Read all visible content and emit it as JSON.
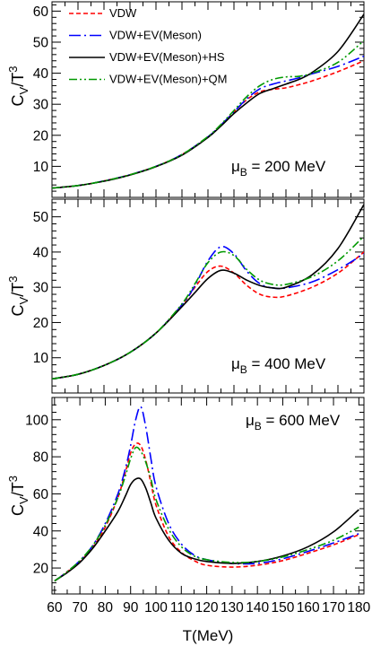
{
  "chart_data": [
    {
      "type": "line",
      "ylabel": "C_V/T^3",
      "annotation": {
        "symbol": "μ",
        "subscript": "B",
        "rest": " = 200 MeV"
      },
      "xlim": [
        60,
        180
      ],
      "ylim": [
        0,
        63
      ],
      "yticks": [
        10,
        20,
        30,
        40,
        50,
        60
      ],
      "xticks": [
        60,
        80,
        100,
        120,
        140,
        160,
        180
      ],
      "legend": {
        "placement": "top-left",
        "entries": [
          "VDW",
          "VDW+EV(Meson)",
          "VDW+EV(Meson)+HS",
          "VDW+EV(Meson)+QM"
        ]
      },
      "series": [
        {
          "name": "VDW",
          "color": "#ff0000",
          "dash": "dashed",
          "x": [
            60,
            70,
            80,
            90,
            100,
            110,
            120,
            125,
            130,
            135,
            140,
            145,
            150,
            155,
            160,
            170,
            180
          ],
          "y": [
            3.0,
            3.8,
            5.3,
            7.3,
            10.0,
            13.8,
            19.5,
            23.3,
            27.5,
            31.5,
            34.0,
            34.8,
            35.3,
            36.3,
            37.5,
            40.5,
            44.0
          ]
        },
        {
          "name": "VDW+EV(Meson)",
          "color": "#0000ff",
          "dash": "dashdot",
          "x": [
            60,
            70,
            80,
            90,
            100,
            110,
            120,
            125,
            130,
            135,
            140,
            145,
            150,
            155,
            160,
            170,
            180
          ],
          "y": [
            3.0,
            3.8,
            5.3,
            7.3,
            10.0,
            13.8,
            19.5,
            23.3,
            27.5,
            31.8,
            35.0,
            36.5,
            37.5,
            38.5,
            39.8,
            42.2,
            45.5
          ]
        },
        {
          "name": "VDW+EV(Meson)+HS",
          "color": "#000000",
          "dash": "solid",
          "x": [
            60,
            70,
            80,
            90,
            100,
            110,
            120,
            125,
            130,
            135,
            140,
            145,
            150,
            155,
            160,
            170,
            180
          ],
          "y": [
            3.0,
            3.8,
            5.2,
            7.2,
            9.9,
            13.6,
            19.3,
            23.0,
            27.0,
            30.5,
            33.5,
            35.0,
            36.5,
            38.0,
            40.2,
            47.0,
            59.0
          ]
        },
        {
          "name": "VDW+EV(Meson)+QM",
          "color": "#009900",
          "dash": "dashdotdot",
          "x": [
            60,
            70,
            80,
            90,
            100,
            110,
            120,
            125,
            130,
            135,
            140,
            145,
            150,
            155,
            160,
            170,
            180
          ],
          "y": [
            3.0,
            3.8,
            5.3,
            7.3,
            10.0,
            13.8,
            19.6,
            23.5,
            28.0,
            32.5,
            36.0,
            38.0,
            38.8,
            39.0,
            40.0,
            43.5,
            50.5
          ]
        }
      ]
    },
    {
      "type": "line",
      "ylabel": "C_V/T^3",
      "annotation": {
        "symbol": "μ",
        "subscript": "B",
        "rest": " = 400 MeV"
      },
      "xlim": [
        60,
        180
      ],
      "ylim": [
        0,
        55
      ],
      "yticks": [
        10,
        20,
        30,
        40,
        50
      ],
      "xticks": [
        60,
        80,
        100,
        120,
        140,
        160,
        180
      ],
      "series": [
        {
          "name": "VDW",
          "color": "#ff0000",
          "dash": "dashed",
          "x": [
            60,
            70,
            80,
            90,
            100,
            110,
            115,
            120,
            125,
            130,
            135,
            140,
            145,
            150,
            160,
            170,
            180
          ],
          "y": [
            4.0,
            5.3,
            7.8,
            11.5,
            17.0,
            25.0,
            30.0,
            34.5,
            36.0,
            34.0,
            30.5,
            28.0,
            27.2,
            27.5,
            30.0,
            34.0,
            40.0
          ]
        },
        {
          "name": "VDW+EV(Meson)",
          "color": "#0000ff",
          "dash": "dashdot",
          "x": [
            60,
            70,
            80,
            90,
            100,
            110,
            115,
            120,
            125,
            130,
            135,
            140,
            145,
            150,
            160,
            170,
            180
          ],
          "y": [
            4.0,
            5.3,
            7.8,
            11.5,
            17.0,
            25.0,
            30.5,
            37.5,
            41.5,
            39.5,
            34.5,
            31.0,
            29.8,
            29.8,
            31.5,
            35.0,
            39.5
          ]
        },
        {
          "name": "VDW+EV(Meson)+HS",
          "color": "#000000",
          "dash": "solid",
          "x": [
            60,
            70,
            80,
            90,
            100,
            110,
            115,
            120,
            125,
            130,
            135,
            140,
            145,
            150,
            160,
            170,
            180
          ],
          "y": [
            4.0,
            5.3,
            7.8,
            11.5,
            17.0,
            24.5,
            28.5,
            32.5,
            34.8,
            34.0,
            32.0,
            30.5,
            29.8,
            30.0,
            33.5,
            41.0,
            53.5
          ]
        },
        {
          "name": "VDW+EV(Meson)+QM",
          "color": "#009900",
          "dash": "dashdotdot",
          "x": [
            60,
            70,
            80,
            90,
            100,
            110,
            115,
            120,
            125,
            130,
            135,
            140,
            145,
            150,
            160,
            170,
            180
          ],
          "y": [
            4.0,
            5.3,
            7.8,
            11.5,
            17.0,
            25.3,
            31.0,
            37.0,
            40.0,
            39.0,
            35.0,
            32.0,
            30.8,
            30.8,
            33.0,
            37.5,
            44.5
          ]
        }
      ]
    },
    {
      "type": "line",
      "ylabel": "C_V/T^3",
      "xlabel": "T(MeV)",
      "annotation": {
        "symbol": "μ",
        "subscript": "B",
        "rest": " = 600 MeV"
      },
      "xlim": [
        59,
        182
      ],
      "ylim": [
        6,
        112
      ],
      "yticks": [
        20,
        40,
        60,
        80,
        100
      ],
      "xticks": [
        60,
        70,
        80,
        90,
        100,
        110,
        120,
        130,
        140,
        150,
        160,
        170,
        180
      ],
      "xticklabels": [
        "60",
        "70",
        "80",
        "90",
        "100",
        "110",
        "120",
        "130",
        "140",
        "150",
        "160",
        "170",
        "180"
      ],
      "series": [
        {
          "name": "VDW",
          "color": "#ff0000",
          "dash": "dashed",
          "x": [
            60,
            65,
            70,
            75,
            80,
            85,
            88,
            90,
            92,
            94,
            96,
            98,
            100,
            105,
            110,
            115,
            120,
            130,
            140,
            150,
            160,
            170,
            180
          ],
          "y": [
            13,
            18,
            23.5,
            31,
            42,
            58,
            72,
            82,
            87,
            86,
            78,
            66,
            54,
            37,
            28.5,
            24,
            21.5,
            20.5,
            21.5,
            24,
            28,
            32.5,
            38
          ]
        },
        {
          "name": "VDW+EV(Meson)",
          "color": "#0000ff",
          "dash": "dashdot",
          "x": [
            60,
            65,
            70,
            75,
            80,
            85,
            88,
            90,
            92,
            94,
            96,
            98,
            100,
            105,
            110,
            115,
            120,
            130,
            140,
            150,
            160,
            170,
            180
          ],
          "y": [
            13,
            18,
            24,
            32,
            44,
            60,
            74,
            86,
            100,
            107,
            96,
            79,
            64,
            44,
            33,
            27,
            24.5,
            22.5,
            22.5,
            25,
            29,
            33.5,
            38.5
          ]
        },
        {
          "name": "VDW+EV(Meson)+HS",
          "color": "#000000",
          "dash": "solid",
          "x": [
            60,
            65,
            70,
            75,
            80,
            85,
            88,
            90,
            92,
            94,
            96,
            98,
            100,
            105,
            110,
            115,
            120,
            130,
            140,
            150,
            160,
            170,
            180
          ],
          "y": [
            13,
            17.5,
            23,
            30.5,
            40,
            50.5,
            59,
            65,
            68,
            68,
            63,
            55,
            47,
            35,
            28,
            25,
            23.5,
            22.5,
            23.5,
            26.5,
            31.5,
            39.5,
            51.5
          ]
        },
        {
          "name": "VDW+EV(Meson)+QM",
          "color": "#009900",
          "dash": "dashdotdot",
          "x": [
            60,
            65,
            70,
            75,
            80,
            85,
            88,
            90,
            92,
            94,
            96,
            98,
            100,
            105,
            110,
            115,
            120,
            130,
            140,
            150,
            160,
            170,
            180
          ],
          "y": [
            13,
            18,
            24,
            32,
            43,
            58,
            70,
            79,
            85,
            83,
            77,
            68,
            57,
            41,
            31.5,
            26.5,
            24.5,
            23,
            23.5,
            26,
            30,
            35,
            42
          ]
        }
      ]
    }
  ]
}
